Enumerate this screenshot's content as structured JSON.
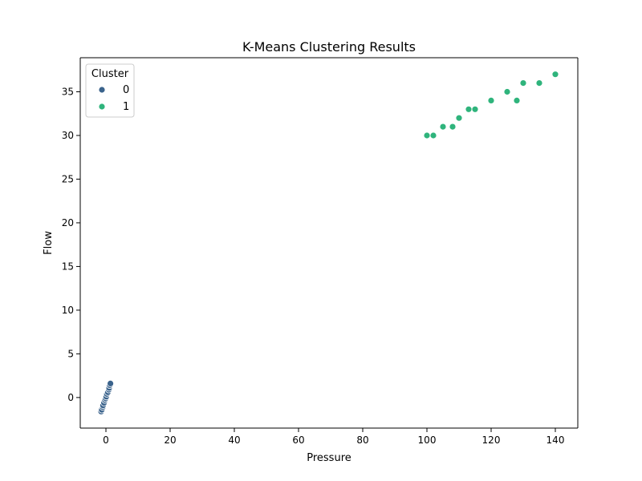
{
  "chart_data": {
    "type": "scatter",
    "title": "K-Means Clustering Results",
    "xlabel": "Pressure",
    "ylabel": "Flow",
    "xlim": [
      -8,
      147
    ],
    "ylim": [
      -3.5,
      38.9
    ],
    "xticks": [
      0,
      20,
      40,
      60,
      80,
      100,
      120,
      140
    ],
    "yticks": [
      0,
      5,
      10,
      15,
      20,
      25,
      30,
      35
    ],
    "grid": false,
    "legend": {
      "title": "Cluster",
      "placement": "top-left",
      "entries": [
        {
          "label": "0",
          "color": "#3b638c"
        },
        {
          "label": "1",
          "color": "#2fb47c"
        }
      ]
    },
    "series": [
      {
        "name": "0",
        "color": "#3b638c",
        "x": [
          -1.5,
          -1.3,
          -1.0,
          -0.9,
          -0.6,
          -0.3,
          -0.1,
          0.1,
          0.3,
          0.6,
          0.9,
          1.0,
          1.2,
          1.4
        ],
        "y": [
          -1.6,
          -1.4,
          -1.1,
          -0.9,
          -0.6,
          -0.3,
          -0.1,
          0.1,
          0.4,
          0.6,
          0.9,
          1.1,
          1.4,
          1.6
        ]
      },
      {
        "name": "1",
        "color": "#2fb47c",
        "x": [
          100,
          102,
          105,
          108,
          110,
          113,
          115,
          120,
          125,
          128,
          130,
          135,
          140
        ],
        "y": [
          30,
          30,
          31,
          31,
          32,
          33,
          33,
          34,
          35,
          34,
          36,
          36,
          37
        ]
      }
    ]
  }
}
